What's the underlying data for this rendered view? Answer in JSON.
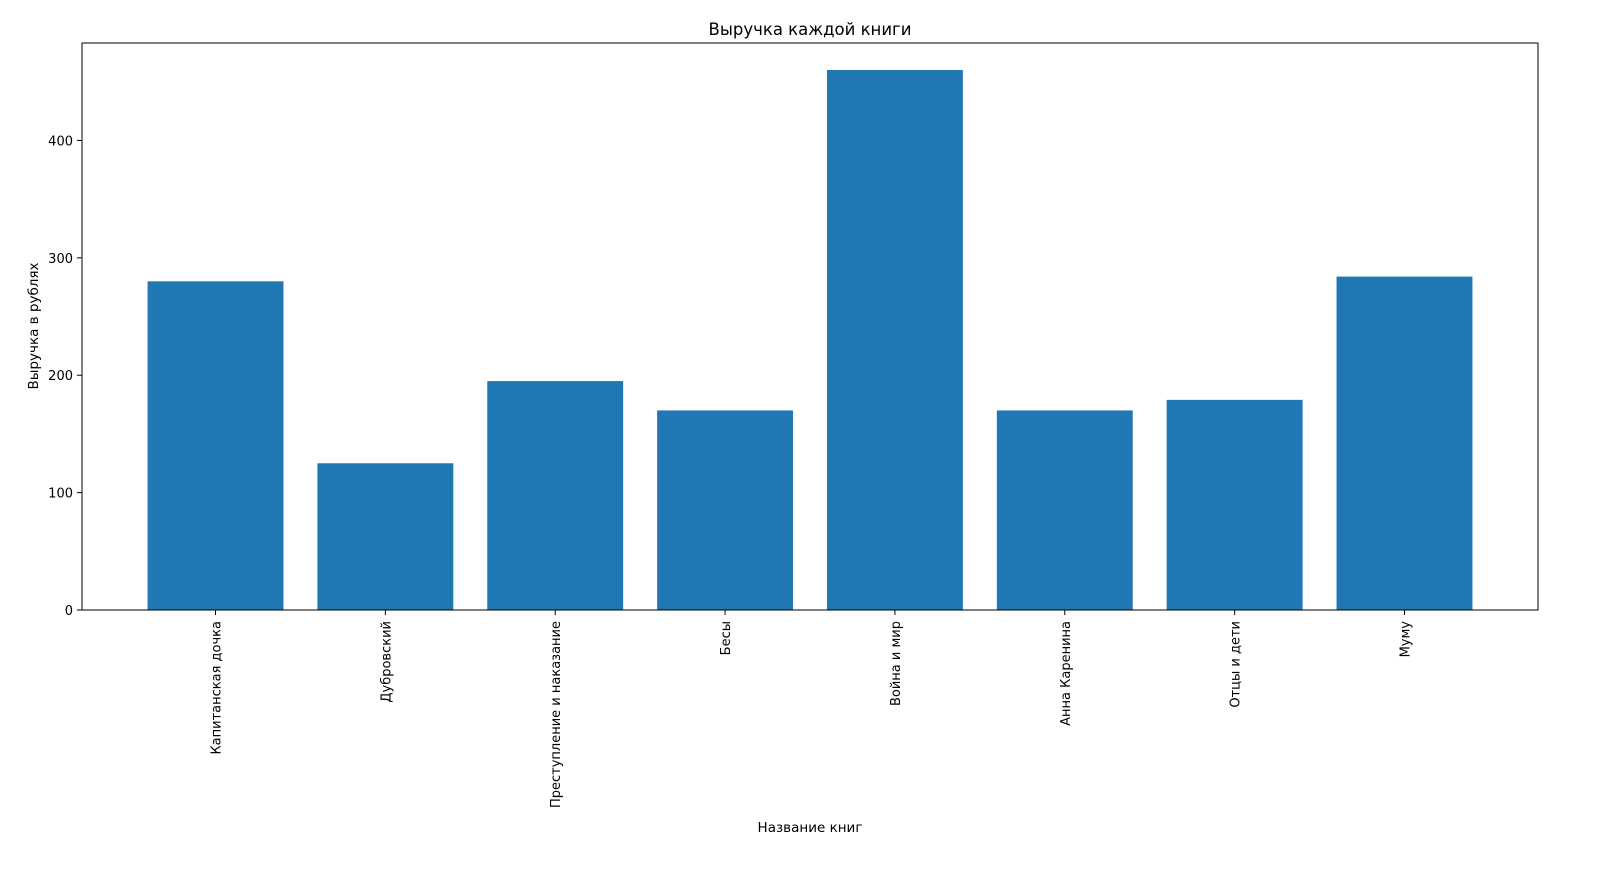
{
  "chart_data": {
    "type": "bar",
    "title": "Выручка каждой книги",
    "xlabel": "Название книг",
    "ylabel": "Выручка в рублях",
    "categories": [
      "Капитанская дочка",
      "Дубровский",
      "Преступление и наказание",
      "Бесы",
      "Война и мир",
      "Анна Каренина",
      "Отцы и дети",
      "Муму"
    ],
    "values": [
      280,
      125,
      195,
      170,
      460,
      170,
      179,
      284
    ],
    "ylim": [
      0,
      483
    ],
    "yticks": [
      0,
      100,
      200,
      300,
      400
    ],
    "grid": false,
    "bar_color": "#1f77b4",
    "axis_color": "#000000"
  }
}
